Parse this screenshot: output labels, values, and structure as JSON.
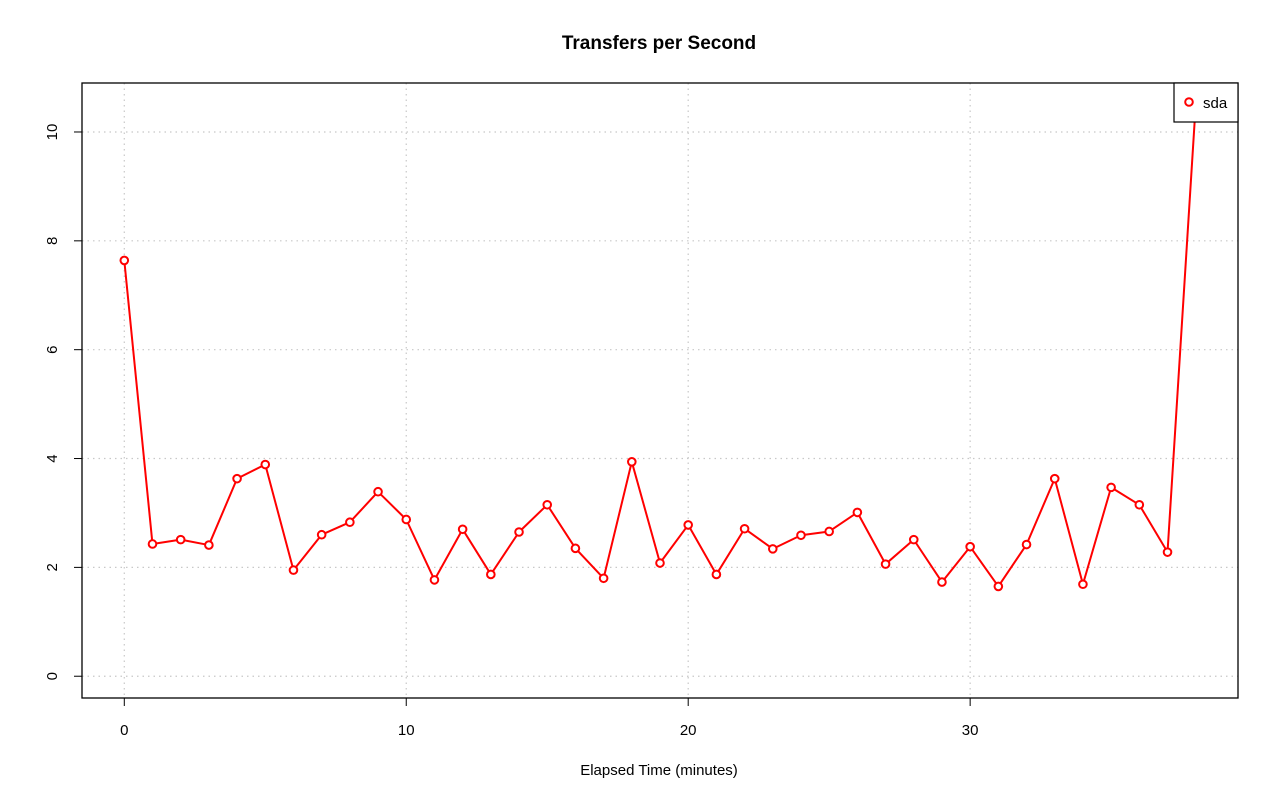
{
  "chart_data": {
    "type": "line",
    "title": "Transfers per Second",
    "xlabel": "Elapsed Time (minutes)",
    "ylabel": "",
    "xlim": [
      -1.5,
      39.5
    ],
    "ylim": [
      -0.4,
      10.9
    ],
    "xticks": [
      0,
      10,
      20,
      30
    ],
    "yticks": [
      0,
      2,
      4,
      6,
      8,
      10
    ],
    "grid": true,
    "legend_position": "top-right",
    "series": [
      {
        "name": "sda",
        "color": "#ff0000",
        "x": [
          0,
          1,
          2,
          3,
          4,
          5,
          6,
          7,
          8,
          9,
          10,
          11,
          12,
          13,
          14,
          15,
          16,
          17,
          18,
          19,
          20,
          21,
          22,
          23,
          24,
          25,
          26,
          27,
          28,
          29,
          30,
          31,
          32,
          33,
          34,
          35,
          36,
          37,
          38
        ],
        "y": [
          7.64,
          2.43,
          2.51,
          2.41,
          3.63,
          3.89,
          1.95,
          2.6,
          2.83,
          3.39,
          2.88,
          1.77,
          2.7,
          1.87,
          2.65,
          3.15,
          2.35,
          1.8,
          3.94,
          2.08,
          2.78,
          1.87,
          2.71,
          2.34,
          2.59,
          2.66,
          3.01,
          2.06,
          2.51,
          1.73,
          2.38,
          1.65,
          2.42,
          3.63,
          1.69,
          3.47,
          3.15,
          2.28,
          10.5
        ]
      }
    ]
  }
}
